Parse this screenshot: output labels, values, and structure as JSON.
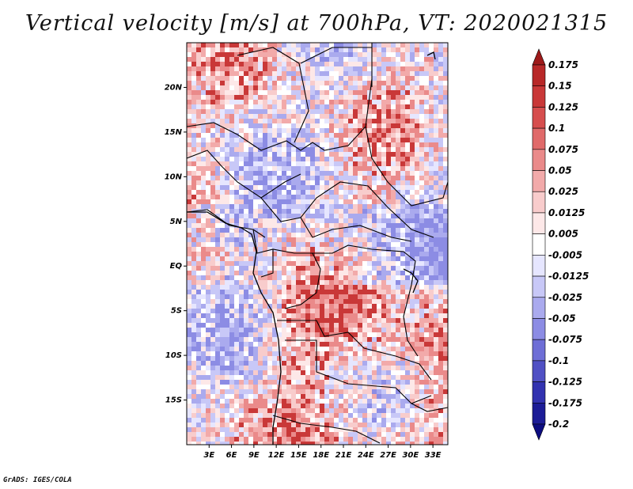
{
  "title": "Vertical velocity [m/s] at 700hPa, VT: 2020021315",
  "credit": "GrADS: IGES/COLA",
  "map": {
    "lat_labels": [
      "20N",
      "15N",
      "10N",
      "5N",
      "EQ",
      "5S",
      "10S",
      "15S"
    ],
    "lat_values": [
      20,
      15,
      10,
      5,
      0,
      -5,
      -10,
      -15
    ],
    "lon_labels": [
      "3E",
      "6E",
      "9E",
      "12E",
      "15E",
      "18E",
      "21E",
      "24E",
      "27E",
      "30E",
      "33E"
    ],
    "lon_values": [
      3,
      6,
      9,
      12,
      15,
      18,
      21,
      24,
      27,
      30,
      33
    ],
    "lon_range": [
      0,
      35
    ],
    "lat_range": [
      -20,
      25
    ]
  },
  "colorbar": {
    "labels": [
      "0.175",
      "0.15",
      "0.125",
      "0.1",
      "0.075",
      "0.05",
      "0.025",
      "0.0125",
      "0.005",
      "-0.005",
      "-0.0125",
      "-0.025",
      "-0.05",
      "-0.075",
      "-0.1",
      "-0.125",
      "-0.175",
      "-0.2"
    ],
    "colors": [
      "#9e1a1a",
      "#b82828",
      "#c93838",
      "#d64e4e",
      "#e06a6a",
      "#ea8a8a",
      "#f2aaaa",
      "#f8cccc",
      "#fde8e8",
      "#ffffff",
      "#e6e6ff",
      "#c8c8f7",
      "#aaaaee",
      "#8c8ce4",
      "#6e6ed6",
      "#5050c4",
      "#3232b0",
      "#1c1c96",
      "#0c0c80"
    ]
  }
}
